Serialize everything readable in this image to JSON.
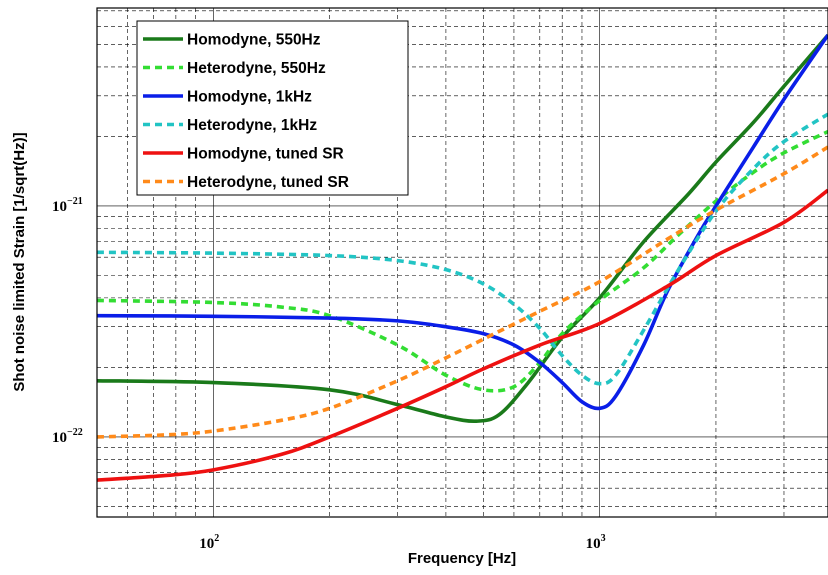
{
  "chart_data": {
    "type": "line",
    "title": "",
    "xlabel": "Frequency [Hz]",
    "ylabel": "Shot noise limited Strain [1/sqrt(Hz)]",
    "xscale": "log",
    "yscale": "log",
    "xlim": [
      50,
      3900
    ],
    "ylim": [
      4.5e-23,
      7.2e-21
    ],
    "grid": true,
    "legend_position": "top-left",
    "x_ticks": [
      {
        "base": "10",
        "exp": "2",
        "value": 100
      },
      {
        "base": "10",
        "exp": "3",
        "value": 1000
      }
    ],
    "y_ticks": [
      {
        "base": "10",
        "exp": "−22",
        "value": 1e-22
      },
      {
        "base": "10",
        "exp": "−21",
        "value": 1e-21
      }
    ],
    "series": [
      {
        "name": "Homodyne, 550Hz",
        "color": "#1a7a1a",
        "style": "solid",
        "x": [
          50,
          100,
          200,
          300,
          400,
          480,
          550,
          650,
          800,
          1000,
          1300,
          1700,
          2000,
          2500,
          3000,
          3900
        ],
        "y": [
          1.75e-22,
          1.72e-22,
          1.6e-22,
          1.38e-22,
          1.22e-22,
          1.17e-22,
          1.25e-22,
          1.7e-22,
          2.7e-22,
          4e-22,
          7e-22,
          1.13e-21,
          1.55e-21,
          2.3e-21,
          3.3e-21,
          5.5e-21
        ]
      },
      {
        "name": "Heterodyne, 550Hz",
        "color": "#33dd33",
        "style": "dashed",
        "x": [
          50,
          100,
          150,
          200,
          300,
          400,
          500,
          600,
          700,
          800,
          1000,
          1300,
          1600,
          2000,
          2500,
          3000,
          3900
        ],
        "y": [
          3.9e-22,
          3.82e-22,
          3.65e-22,
          3.35e-22,
          2.5e-22,
          1.85e-22,
          1.6e-22,
          1.65e-22,
          2.1e-22,
          2.8e-22,
          3.9e-22,
          5.4e-22,
          7.5e-22,
          1.05e-21,
          1.4e-21,
          1.7e-21,
          2.1e-21
        ]
      },
      {
        "name": "Homodyne, 1kHz",
        "color": "#0a1ee8",
        "style": "solid",
        "x": [
          50,
          100,
          200,
          300,
          400,
          500,
          600,
          700,
          800,
          900,
          1000,
          1100,
          1300,
          1500,
          1800,
          2000,
          2500,
          3000,
          3900
        ],
        "y": [
          3.35e-22,
          3.33e-22,
          3.27e-22,
          3.18e-22,
          3e-22,
          2.8e-22,
          2.5e-22,
          2.1e-22,
          1.72e-22,
          1.42e-22,
          1.33e-22,
          1.5e-22,
          2.5e-22,
          4.3e-22,
          7.5e-22,
          1e-21,
          1.8e-21,
          2.9e-21,
          5.5e-21
        ]
      },
      {
        "name": "Heterodyne, 1kHz",
        "color": "#22c4c4",
        "style": "dashed",
        "x": [
          50,
          100,
          200,
          300,
          400,
          500,
          600,
          700,
          800,
          900,
          1000,
          1100,
          1300,
          1600,
          2000,
          2500,
          3000,
          3900
        ],
        "y": [
          6.3e-22,
          6.25e-22,
          6.1e-22,
          5.8e-22,
          5.3e-22,
          4.6e-22,
          3.75e-22,
          2.95e-22,
          2.25e-22,
          1.85e-22,
          1.7e-22,
          1.85e-22,
          2.9e-22,
          5.3e-22,
          9.5e-22,
          1.45e-21,
          1.9e-21,
          2.5e-21
        ]
      },
      {
        "name": "Homodyne, tuned SR",
        "color": "#ee1111",
        "style": "solid",
        "x": [
          50,
          75,
          100,
          150,
          200,
          300,
          400,
          500,
          700,
          1000,
          1500,
          2000,
          3000,
          3900
        ],
        "y": [
          6.5e-23,
          6.8e-23,
          7.2e-23,
          8.4e-23,
          1e-22,
          1.33e-22,
          1.65e-22,
          1.97e-22,
          2.5e-22,
          3.1e-22,
          4.5e-22,
          6.1e-22,
          8.5e-22,
          1.17e-21
        ]
      },
      {
        "name": "Heterodyne, tuned SR",
        "color": "#ff8a1a",
        "style": "dashed",
        "x": [
          50,
          75,
          100,
          150,
          200,
          300,
          400,
          500,
          700,
          1000,
          1500,
          2000,
          3000,
          3900
        ],
        "y": [
          1e-22,
          1.02e-22,
          1.06e-22,
          1.18e-22,
          1.33e-22,
          1.75e-22,
          2.2e-22,
          2.65e-22,
          3.5e-22,
          4.7e-22,
          7.2e-22,
          9.6e-22,
          1.38e-21,
          1.8e-21
        ]
      }
    ]
  }
}
